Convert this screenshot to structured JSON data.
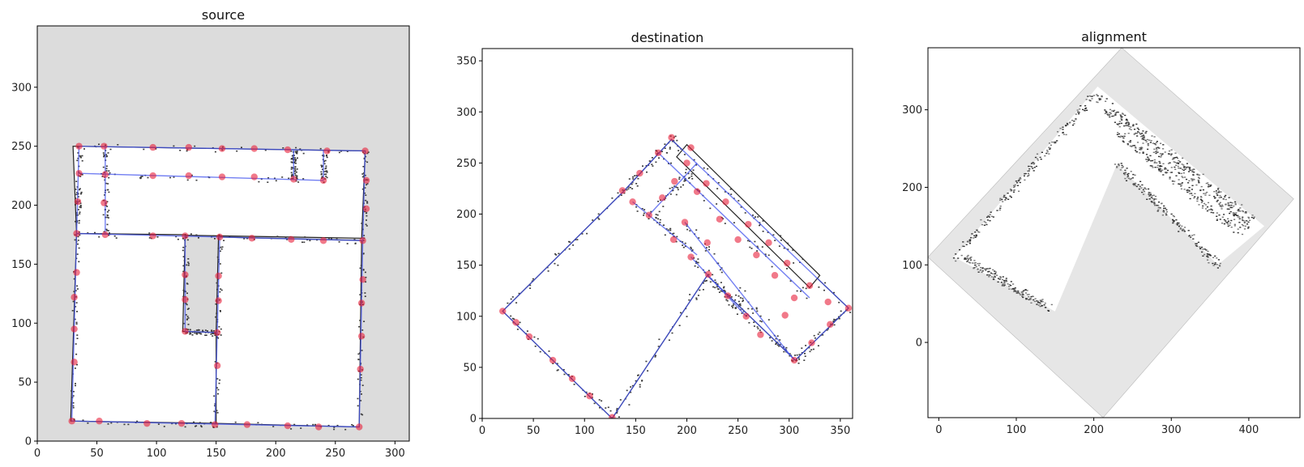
{
  "chart_data": [
    {
      "type": "scatter",
      "title": "source",
      "xlim": [
        0,
        312
      ],
      "ylim": [
        0,
        352
      ],
      "xticks": [
        0,
        50,
        100,
        150,
        200,
        250,
        300
      ],
      "yticks": [
        0,
        50,
        100,
        150,
        200,
        250,
        300
      ],
      "background": "#dcdcdc",
      "rooms": [
        [
          [
            30,
            250
          ],
          [
            275,
            246
          ],
          [
            272,
            172
          ],
          [
            33,
            176
          ]
        ],
        [
          [
            33,
            176
          ],
          [
            124,
            175
          ],
          [
            122,
            93
          ],
          [
            152,
            92
          ],
          [
            150,
            15
          ],
          [
            28,
            17
          ]
        ],
        [
          [
            150,
            92
          ],
          [
            152,
            173
          ],
          [
            272,
            170
          ],
          [
            270,
            12
          ],
          [
            150,
            15
          ]
        ]
      ],
      "points": [
        [
          35,
          250
        ],
        [
          56,
          250
        ],
        [
          97,
          249
        ],
        [
          127,
          249
        ],
        [
          155,
          248
        ],
        [
          182,
          248
        ],
        [
          210,
          247
        ],
        [
          243,
          246
        ],
        [
          275,
          246
        ],
        [
          35,
          227
        ],
        [
          57,
          226
        ],
        [
          97,
          225
        ],
        [
          127,
          225
        ],
        [
          155,
          224
        ],
        [
          182,
          224
        ],
        [
          215,
          222
        ],
        [
          240,
          221
        ],
        [
          276,
          221
        ],
        [
          34,
          203
        ],
        [
          56,
          202
        ],
        [
          276,
          197
        ],
        [
          33,
          176
        ],
        [
          57,
          175
        ],
        [
          97,
          174
        ],
        [
          124,
          174
        ],
        [
          153,
          173
        ],
        [
          180,
          172
        ],
        [
          213,
          171
        ],
        [
          240,
          170
        ],
        [
          273,
          170
        ],
        [
          124,
          141
        ],
        [
          152,
          140
        ],
        [
          33,
          143
        ],
        [
          273,
          137
        ],
        [
          31,
          122
        ],
        [
          124,
          120
        ],
        [
          152,
          119
        ],
        [
          272,
          117
        ],
        [
          31,
          95
        ],
        [
          124,
          93
        ],
        [
          151,
          92
        ],
        [
          272,
          89
        ],
        [
          31,
          67
        ],
        [
          151,
          64
        ],
        [
          271,
          61
        ],
        [
          29,
          17
        ],
        [
          52,
          17
        ],
        [
          92,
          15
        ],
        [
          121,
          15
        ],
        [
          149,
          14
        ],
        [
          176,
          14
        ],
        [
          210,
          13
        ],
        [
          236,
          12
        ],
        [
          270,
          12
        ]
      ],
      "edges": [
        [
          [
            35,
            250
          ],
          [
            275,
            246
          ]
        ],
        [
          [
            35,
            250
          ],
          [
            33,
            176
          ]
        ],
        [
          [
            275,
            246
          ],
          [
            273,
            170
          ]
        ],
        [
          [
            33,
            176
          ],
          [
            273,
            170
          ]
        ],
        [
          [
            35,
            227
          ],
          [
            240,
            221
          ]
        ],
        [
          [
            240,
            246
          ],
          [
            240,
            221
          ]
        ],
        [
          [
            215,
            247
          ],
          [
            215,
            222
          ]
        ],
        [
          [
            124,
            174
          ],
          [
            124,
            93
          ]
        ],
        [
          [
            124,
            93
          ],
          [
            151,
            92
          ]
        ],
        [
          [
            153,
            173
          ],
          [
            149,
            14
          ]
        ],
        [
          [
            33,
            176
          ],
          [
            29,
            17
          ]
        ],
        [
          [
            29,
            17
          ],
          [
            270,
            12
          ]
        ],
        [
          [
            273,
            170
          ],
          [
            270,
            12
          ]
        ],
        [
          [
            57,
            250
          ],
          [
            57,
            175
          ]
        ]
      ],
      "point_color": "#e8203a",
      "line_color": "#4455ee"
    },
    {
      "type": "scatter",
      "title": "destination",
      "xlim": [
        0,
        362
      ],
      "ylim": [
        0,
        362
      ],
      "xticks": [
        0,
        50,
        100,
        150,
        200,
        250,
        300,
        350
      ],
      "yticks": [
        0,
        50,
        100,
        150,
        200,
        250,
        300,
        350
      ],
      "background": "#ffffff",
      "rooms": [
        [
          [
            185,
            273
          ],
          [
            358,
            108
          ],
          [
            306,
            57
          ],
          [
            220,
            140
          ],
          [
            127,
            0
          ],
          [
            20,
            105
          ],
          [
            138,
            222
          ]
        ],
        [
          [
            200,
            268
          ],
          [
            330,
            140
          ],
          [
            320,
            128
          ],
          [
            190,
            256
          ]
        ]
      ],
      "points": [
        [
          185,
          275
        ],
        [
          172,
          260
        ],
        [
          154,
          240
        ],
        [
          137,
          223
        ],
        [
          147,
          212
        ],
        [
          163,
          199
        ],
        [
          176,
          216
        ],
        [
          188,
          232
        ],
        [
          200,
          250
        ],
        [
          219,
          230
        ],
        [
          238,
          212
        ],
        [
          260,
          190
        ],
        [
          280,
          172
        ],
        [
          298,
          152
        ],
        [
          320,
          130
        ],
        [
          338,
          114
        ],
        [
          358,
          108
        ],
        [
          204,
          265
        ],
        [
          210,
          222
        ],
        [
          198,
          192
        ],
        [
          187,
          175
        ],
        [
          204,
          158
        ],
        [
          220,
          172
        ],
        [
          221,
          141
        ],
        [
          240,
          120
        ],
        [
          258,
          100
        ],
        [
          272,
          82
        ],
        [
          296,
          101
        ],
        [
          305,
          57
        ],
        [
          322,
          74
        ],
        [
          340,
          92
        ],
        [
          20,
          105
        ],
        [
          33,
          94
        ],
        [
          46,
          80
        ],
        [
          69,
          57
        ],
        [
          88,
          39
        ],
        [
          105,
          22
        ],
        [
          127,
          1
        ],
        [
          232,
          195
        ],
        [
          250,
          175
        ],
        [
          268,
          160
        ],
        [
          286,
          140
        ],
        [
          305,
          118
        ]
      ],
      "edges": [
        [
          [
            185,
            273
          ],
          [
            358,
            108
          ]
        ],
        [
          [
            358,
            108
          ],
          [
            306,
            57
          ]
        ],
        [
          [
            306,
            57
          ],
          [
            220,
            140
          ]
        ],
        [
          [
            220,
            140
          ],
          [
            127,
            0
          ]
        ],
        [
          [
            127,
            0
          ],
          [
            20,
            105
          ]
        ],
        [
          [
            20,
            105
          ],
          [
            138,
            222
          ]
        ],
        [
          [
            138,
            222
          ],
          [
            185,
            273
          ]
        ],
        [
          [
            172,
            260
          ],
          [
            320,
            118
          ]
        ],
        [
          [
            147,
            212
          ],
          [
            210,
            160
          ]
        ],
        [
          [
            163,
            199
          ],
          [
            210,
            250
          ]
        ],
        [
          [
            204,
            158
          ],
          [
            258,
            100
          ]
        ],
        [
          [
            198,
            192
          ],
          [
            305,
            57
          ]
        ]
      ],
      "point_color": "#e8203a",
      "line_color": "#4455ee"
    },
    {
      "type": "image",
      "title": "alignment",
      "xlim": [
        -14,
        466
      ],
      "ylim": [
        -97,
        380
      ],
      "xticks": [
        0,
        100,
        200,
        300,
        400
      ],
      "yticks": [
        0,
        100,
        200,
        300
      ],
      "diamond": [
        [
          236,
          380
        ],
        [
          458,
          185
        ],
        [
          212,
          -97
        ],
        [
          -14,
          110
        ]
      ]
    }
  ]
}
